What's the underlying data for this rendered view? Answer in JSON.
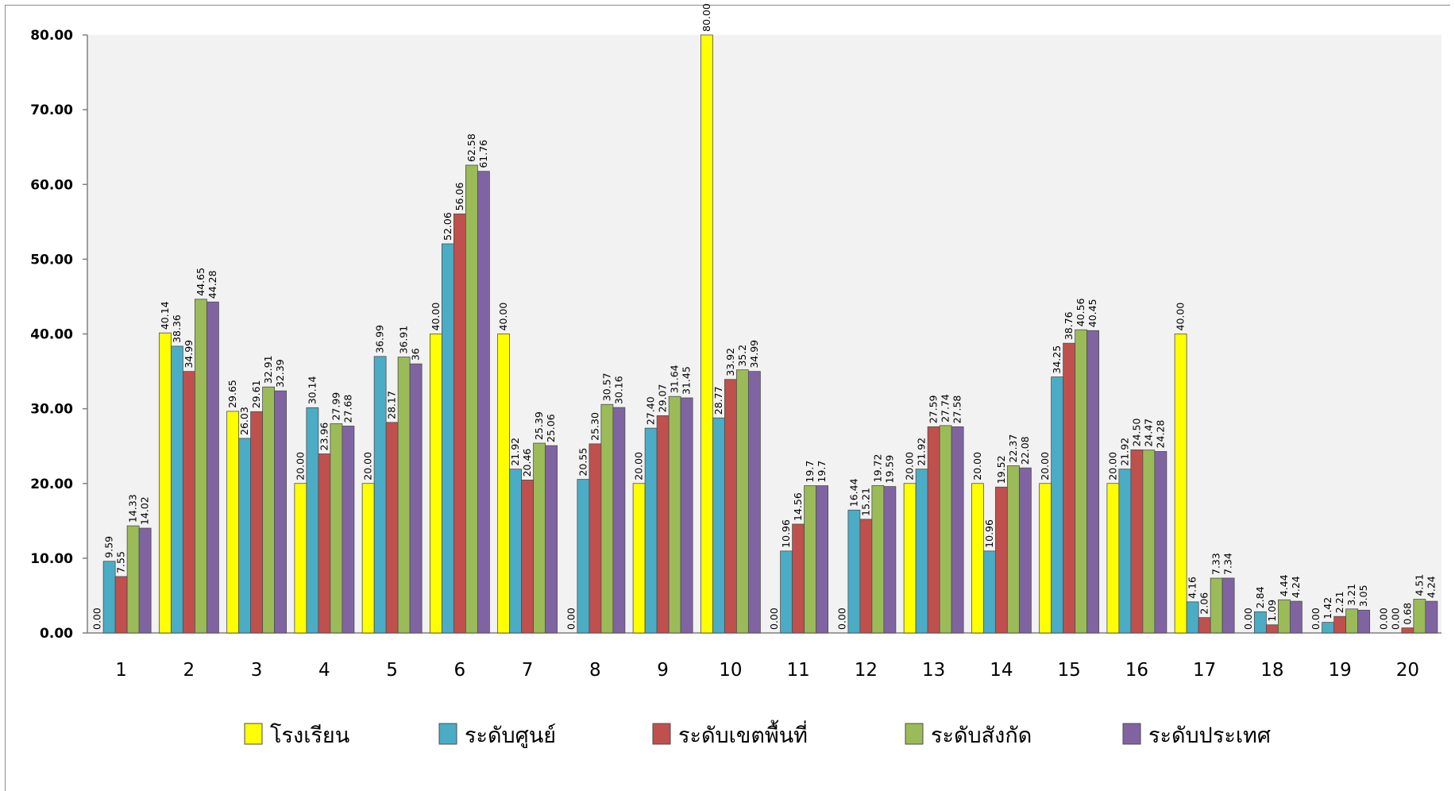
{
  "chart_data": {
    "type": "bar",
    "categories": [
      "1",
      "2",
      "3",
      "4",
      "5",
      "6",
      "7",
      "8",
      "9",
      "10",
      "11",
      "12",
      "13",
      "14",
      "15",
      "16",
      "17",
      "18",
      "19",
      "20"
    ],
    "ylim": [
      0,
      80
    ],
    "yticks": [
      "0.00",
      "10.00",
      "20.00",
      "30.00",
      "40.00",
      "50.00",
      "60.00",
      "70.00",
      "80.00"
    ],
    "grid": false,
    "legend_position": "bottom",
    "series": [
      {
        "name": "โรงเรียน",
        "color": "#ffff00",
        "values": [
          0,
          40.14,
          29.65,
          20,
          20,
          40,
          40,
          0,
          20,
          80,
          0,
          0,
          20,
          20,
          20,
          20,
          40,
          0,
          0,
          0
        ],
        "labels": [
          "0.00",
          "40.14",
          "29.65",
          "20.00",
          "20.00",
          "40.00",
          "40.00",
          "0.00",
          "20.00",
          "80.00",
          "0.00",
          "0.00",
          "20.00",
          "20.00",
          "20.00",
          "20.00",
          "40.00",
          "0.00",
          "0.00",
          "0.00"
        ]
      },
      {
        "name": "ระดับศูนย์",
        "color": "#4bacc6",
        "values": [
          9.59,
          38.36,
          26.03,
          30.14,
          36.99,
          52.06,
          21.92,
          20.55,
          27.4,
          28.77,
          10.96,
          16.44,
          21.92,
          10.96,
          34.25,
          21.92,
          4.16,
          2.84,
          1.42,
          0
        ],
        "labels": [
          "9.59",
          "38.36",
          "26.03",
          "30.14",
          "36.99",
          "52.06",
          "21.92",
          "20.55",
          "27.40",
          "28.77",
          "10.96",
          "16.44",
          "21.92",
          "10.96",
          "34.25",
          "21.92",
          "4.16",
          "2.84",
          "1.42",
          "0.00"
        ]
      },
      {
        "name": "ระดับเขตพื้นที่",
        "color": "#c0504d",
        "values": [
          7.55,
          34.99,
          29.61,
          23.96,
          28.17,
          56.06,
          20.46,
          25.3,
          29.07,
          33.92,
          14.56,
          15.21,
          27.59,
          19.52,
          38.76,
          24.5,
          2.06,
          1.09,
          2.21,
          0.68
        ],
        "labels": [
          "7.55",
          "34.99",
          "29.61",
          "23.96",
          "28.17",
          "56.06",
          "20.46",
          "25.30",
          "29.07",
          "33.92",
          "14.56",
          "15.21",
          "27.59",
          "19.52",
          "38.76",
          "24.50",
          "2.06",
          "1.09",
          "2.21",
          "0.68"
        ]
      },
      {
        "name": "ระดับสังกัด",
        "color": "#9bbb59",
        "values": [
          14.33,
          44.65,
          32.91,
          27.99,
          36.91,
          62.58,
          25.39,
          30.57,
          31.64,
          35.2,
          19.7,
          19.72,
          27.74,
          22.37,
          40.56,
          24.47,
          7.33,
          4.44,
          3.21,
          4.51
        ],
        "labels": [
          "14.33",
          "44.65",
          "32.91",
          "27.99",
          "36.91",
          "62.58",
          "25.39",
          "30.57",
          "31.64",
          "35.2",
          "19.7",
          "19.72",
          "27.74",
          "22.37",
          "40.56",
          "24.47",
          "7.33",
          "4.44",
          "3.21",
          "4.51"
        ]
      },
      {
        "name": "ระดับประเทศ",
        "color": "#8064a2",
        "values": [
          14.02,
          44.28,
          32.39,
          27.68,
          36,
          61.76,
          25.06,
          30.16,
          31.45,
          34.99,
          19.7,
          19.59,
          27.58,
          22.08,
          40.45,
          24.28,
          7.34,
          4.24,
          3.05,
          4.24
        ],
        "labels": [
          "14.02",
          "44.28",
          "32.39",
          "27.68",
          "36",
          "61.76",
          "25.06",
          "30.16",
          "31.45",
          "34.99",
          "19.7",
          "19.59",
          "27.58",
          "22.08",
          "40.45",
          "24.28",
          "7.34",
          "4.24",
          "3.05",
          "4.24"
        ]
      }
    ]
  }
}
